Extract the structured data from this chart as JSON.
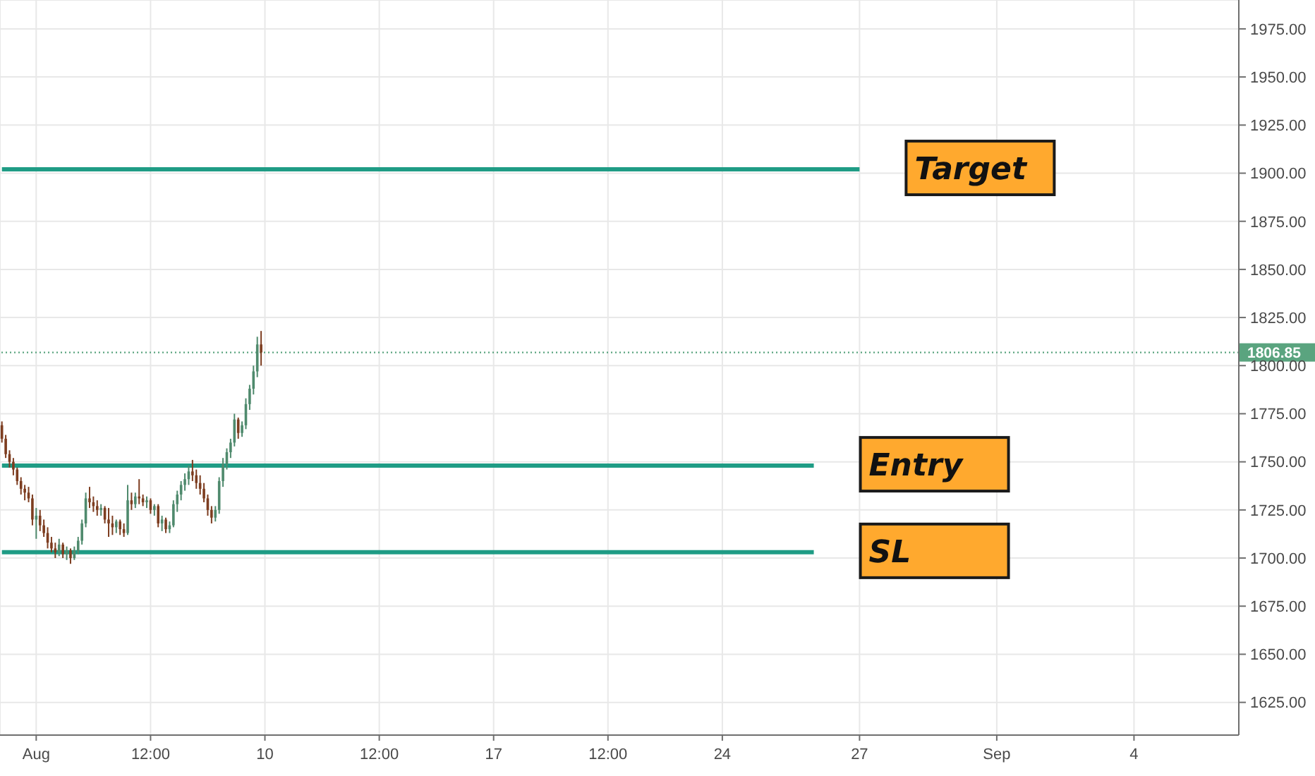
{
  "chart_data": {
    "type": "candlestick",
    "categories": [
      null,
      null,
      null,
      null,
      null,
      null,
      null,
      null,
      null,
      "Aug",
      null,
      null,
      null,
      null,
      null,
      null,
      null,
      null,
      null,
      null,
      null,
      null,
      null,
      null,
      null,
      null,
      null,
      null,
      null,
      null,
      null,
      null,
      null,
      null,
      null,
      null,
      null,
      null,
      null,
      "12:00",
      null,
      null,
      null,
      null,
      null,
      null,
      null,
      null,
      null,
      null,
      null,
      null,
      null,
      null,
      null,
      null,
      null,
      null,
      null,
      null,
      null,
      null,
      null,
      null,
      null,
      null,
      null,
      null,
      null,
      "10",
      null,
      null,
      null,
      null,
      null,
      null,
      null,
      null,
      null,
      null,
      null,
      null,
      null,
      null,
      null,
      null,
      null,
      null,
      null,
      null,
      null,
      null,
      null,
      null,
      null,
      null,
      null,
      null,
      null,
      "12:00",
      null,
      null,
      null,
      null,
      null,
      null,
      null,
      null,
      null,
      null,
      null,
      null,
      null,
      null,
      null,
      null,
      null,
      null,
      null,
      null,
      null,
      null,
      null,
      null,
      null,
      null,
      null,
      null,
      null,
      "17",
      null,
      null,
      null,
      null,
      null,
      null,
      null,
      null,
      null,
      null,
      null,
      null,
      null,
      null,
      null,
      null,
      null,
      null,
      null,
      null,
      null,
      null,
      null,
      null,
      null,
      null,
      null,
      null,
      null,
      "12:00",
      null,
      null,
      null,
      null,
      null,
      null,
      null,
      null,
      null,
      null,
      null,
      null,
      null,
      null,
      null,
      null,
      null,
      null,
      null,
      null,
      null,
      null,
      null,
      null,
      null,
      null,
      null,
      null,
      null,
      "24",
      null,
      null,
      null,
      null,
      null,
      null,
      null,
      null,
      null,
      null,
      null,
      null,
      null,
      null,
      null,
      null,
      null,
      null,
      null,
      null,
      null,
      null,
      null,
      null,
      null,
      null,
      null,
      null,
      null,
      null,
      null,
      null,
      null,
      null,
      null,
      "27",
      null,
      null,
      null,
      null,
      null,
      null,
      null,
      null,
      null,
      null,
      null,
      null,
      null,
      null,
      null,
      null,
      null,
      null,
      null,
      null,
      null,
      null,
      null,
      null,
      null,
      null,
      null,
      null,
      null,
      null,
      null,
      null,
      null,
      null,
      null,
      "Sep",
      null,
      null,
      null,
      null,
      null,
      null,
      null,
      null,
      null,
      null,
      null,
      null,
      null,
      null,
      null,
      null,
      null,
      null,
      null,
      null,
      null,
      null,
      null,
      null,
      null,
      null,
      null,
      null,
      null,
      null,
      null,
      null,
      null,
      null,
      null,
      "4",
      null,
      null,
      null,
      null,
      null,
      null,
      null,
      null,
      null,
      null,
      null,
      null,
      null,
      null,
      null,
      null,
      null,
      null,
      null,
      null,
      null,
      null,
      null,
      null,
      null,
      null,
      null
    ],
    "ohlc": [
      [
        1769,
        1771,
        1760,
        1762
      ],
      [
        1762,
        1764,
        1752,
        1754
      ],
      [
        1754,
        1756,
        1747,
        1750
      ],
      [
        1750,
        1752,
        1743,
        1746
      ],
      [
        1746,
        1747,
        1738,
        1740
      ],
      [
        1740,
        1742,
        1733,
        1736
      ],
      [
        1736,
        1738,
        1730,
        1734
      ],
      [
        1734,
        1737,
        1729,
        1731
      ],
      [
        1731,
        1733,
        1717,
        1720
      ],
      [
        1720,
        1726,
        1710,
        1722
      ],
      [
        1722,
        1725,
        1714,
        1717
      ],
      [
        1717,
        1720,
        1711,
        1713
      ],
      [
        1713,
        1716,
        1705,
        1708
      ],
      [
        1708,
        1711,
        1703,
        1705
      ],
      [
        1705,
        1708,
        1700,
        1703
      ],
      [
        1703,
        1710,
        1701,
        1707
      ],
      [
        1707,
        1708,
        1700,
        1702
      ],
      [
        1702,
        1706,
        1699,
        1704
      ],
      [
        1704,
        1705,
        1697,
        1700
      ],
      [
        1700,
        1706,
        1699,
        1704
      ],
      [
        1704,
        1711,
        1702,
        1709
      ],
      [
        1709,
        1720,
        1707,
        1718
      ],
      [
        1718,
        1734,
        1716,
        1731
      ],
      [
        1731,
        1737,
        1726,
        1729
      ],
      [
        1729,
        1732,
        1724,
        1727
      ],
      [
        1727,
        1730,
        1722,
        1725
      ],
      [
        1725,
        1728,
        1722,
        1726
      ],
      [
        1726,
        1727,
        1718,
        1720
      ],
      [
        1720,
        1726,
        1711,
        1718
      ],
      [
        1718,
        1722,
        1712,
        1716
      ],
      [
        1716,
        1720,
        1713,
        1719
      ],
      [
        1719,
        1720,
        1712,
        1715
      ],
      [
        1715,
        1718,
        1711,
        1713
      ],
      [
        1713,
        1738,
        1712,
        1730
      ],
      [
        1730,
        1734,
        1725,
        1728
      ],
      [
        1728,
        1734,
        1726,
        1732
      ],
      [
        1732,
        1741,
        1728,
        1731
      ],
      [
        1731,
        1733,
        1727,
        1729
      ],
      [
        1729,
        1732,
        1726,
        1730
      ],
      [
        1730,
        1731,
        1723,
        1725
      ],
      [
        1725,
        1728,
        1722,
        1727
      ],
      [
        1727,
        1728,
        1716,
        1718
      ],
      [
        1718,
        1722,
        1714,
        1720
      ],
      [
        1720,
        1721,
        1713,
        1715
      ],
      [
        1715,
        1719,
        1713,
        1717
      ],
      [
        1717,
        1730,
        1716,
        1728
      ],
      [
        1728,
        1735,
        1724,
        1733
      ],
      [
        1733,
        1740,
        1730,
        1738
      ],
      [
        1738,
        1744,
        1735,
        1741
      ],
      [
        1741,
        1748,
        1738,
        1745
      ],
      [
        1745,
        1751,
        1740,
        1743
      ],
      [
        1743,
        1746,
        1736,
        1739
      ],
      [
        1739,
        1743,
        1733,
        1736
      ],
      [
        1736,
        1739,
        1729,
        1731
      ],
      [
        1731,
        1733,
        1722,
        1725
      ],
      [
        1725,
        1727,
        1718,
        1721
      ],
      [
        1721,
        1727,
        1719,
        1725
      ],
      [
        1725,
        1742,
        1723,
        1740
      ],
      [
        1740,
        1752,
        1737,
        1749
      ],
      [
        1749,
        1757,
        1746,
        1755
      ],
      [
        1755,
        1762,
        1752,
        1760
      ],
      [
        1760,
        1775,
        1758,
        1772
      ],
      [
        1772,
        1773,
        1762,
        1765
      ],
      [
        1765,
        1771,
        1763,
        1769
      ],
      [
        1769,
        1783,
        1767,
        1780
      ],
      [
        1780,
        1790,
        1777,
        1788
      ],
      [
        1788,
        1800,
        1785,
        1797
      ],
      [
        1797,
        1815,
        1794,
        1811
      ],
      [
        1811,
        1818,
        1800,
        1806.85
      ],
      null,
      null,
      null,
      null,
      null,
      null,
      null,
      null,
      null,
      null,
      null,
      null,
      null,
      null,
      null,
      null,
      null,
      null,
      null,
      null,
      null,
      null,
      null,
      null,
      null,
      null,
      null,
      null,
      null,
      null,
      null,
      null,
      null,
      null,
      null,
      null,
      null,
      null,
      null,
      null,
      null,
      null,
      null,
      null,
      null,
      null,
      null,
      null,
      null,
      null,
      null,
      null,
      null,
      null,
      null,
      null,
      null,
      null,
      null,
      null,
      null,
      null,
      null,
      null,
      null,
      null,
      null,
      null,
      null,
      null,
      null,
      null,
      null,
      null,
      null,
      null,
      null,
      null,
      null,
      null,
      null,
      null,
      null,
      null,
      null,
      null,
      null,
      null,
      null,
      null,
      null,
      null,
      null,
      null,
      null,
      null,
      null,
      null,
      null,
      null,
      null,
      null,
      null,
      null,
      null,
      null,
      null,
      null,
      null,
      null,
      null,
      null,
      null,
      null,
      null,
      null,
      null,
      null,
      null,
      null,
      null,
      null,
      null,
      null,
      null,
      null,
      null,
      null,
      null,
      null,
      null,
      null,
      null,
      null,
      null,
      null,
      null,
      null,
      null,
      null,
      null,
      null,
      null,
      null,
      null,
      null,
      null,
      null,
      null,
      null,
      null,
      null,
      null,
      null,
      null,
      null,
      null,
      null,
      null,
      null,
      null,
      null,
      null,
      null,
      null,
      null,
      null,
      null,
      null,
      null,
      null,
      null,
      null,
      null,
      null,
      null,
      null,
      null,
      null,
      null,
      null,
      null,
      null,
      null,
      null,
      null,
      null,
      null,
      null,
      null,
      null,
      null,
      null,
      null,
      null,
      null,
      null,
      null,
      null,
      null,
      null,
      null,
      null,
      null,
      null,
      null,
      null,
      null,
      null,
      null,
      null,
      null,
      null,
      null,
      null,
      null,
      null,
      null,
      null,
      null,
      null,
      null,
      null,
      null,
      null,
      null,
      null,
      null,
      null,
      null,
      null,
      null,
      null,
      null,
      null,
      null,
      null,
      null,
      null,
      null,
      null,
      null,
      null,
      null,
      null,
      null,
      null,
      null,
      null,
      null,
      null,
      null,
      null,
      null,
      null,
      null
    ],
    "colors": [
      "#7d3d20",
      "#7d3d20",
      "#7d3d20",
      "#7d3d20",
      "#7d3d20",
      "#7d3d20",
      "#7d3d20",
      "#7d3d20",
      "#7d3d20",
      "#4f8a6d",
      "#7d3d20",
      "#7d3d20",
      "#7d3d20",
      "#7d3d20",
      "#7d3d20",
      "#4f8a6d",
      "#7d3d20",
      "#4f8a6d",
      "#7d3d20",
      "#4f8a6d",
      "#4f8a6d",
      "#4f8a6d",
      "#4f8a6d",
      "#7d3d20",
      "#7d3d20",
      "#7d3d20",
      "#4f8a6d",
      "#7d3d20",
      "#7d3d20",
      "#7d3d20",
      "#4f8a6d",
      "#7d3d20",
      "#7d3d20",
      "#4f8a6d",
      "#7d3d20",
      "#4f8a6d",
      "#7d3d20",
      "#7d3d20",
      "#4f8a6d",
      "#7d3d20",
      "#4f8a6d",
      "#7d3d20",
      "#4f8a6d",
      "#7d3d20",
      "#4f8a6d",
      "#4f8a6d",
      "#4f8a6d",
      "#4f8a6d",
      "#4f8a6d",
      "#4f8a6d",
      "#7d3d20",
      "#7d3d20",
      "#7d3d20",
      "#7d3d20",
      "#7d3d20",
      "#7d3d20",
      "#4f8a6d",
      "#4f8a6d",
      "#4f8a6d",
      "#4f8a6d",
      "#4f8a6d",
      "#4f8a6d",
      "#7d3d20",
      "#4f8a6d",
      "#4f8a6d",
      "#4f8a6d",
      "#4f8a6d",
      "#4f8a6d",
      "#7d3d20",
      null,
      null,
      null,
      null,
      null,
      null,
      null,
      null,
      null,
      null,
      null,
      null,
      null,
      null,
      null,
      null,
      null,
      null,
      null,
      null,
      null,
      null,
      null,
      null,
      null,
      null,
      null,
      null,
      null,
      null,
      null,
      null,
      null,
      null,
      null,
      null,
      null,
      null,
      null,
      null,
      null,
      null,
      null,
      null,
      null,
      null,
      null,
      null,
      null,
      null,
      null,
      null,
      null,
      null,
      null,
      null,
      null,
      null,
      null,
      null,
      null,
      null,
      null,
      null,
      null,
      null,
      null,
      null,
      null,
      null,
      null,
      null,
      null,
      null,
      null,
      null,
      null,
      null,
      null,
      null,
      null,
      null,
      null,
      null,
      null,
      null,
      null,
      null,
      null,
      null,
      null,
      null,
      null,
      null,
      null,
      null,
      null,
      null,
      null,
      null,
      null,
      null,
      null,
      null,
      null,
      null,
      null,
      null,
      null,
      null,
      null,
      null,
      null,
      null,
      null,
      null,
      null,
      null,
      null,
      null,
      null,
      null,
      null,
      null,
      null,
      null,
      null,
      null,
      null,
      null,
      null,
      null,
      null,
      null,
      null,
      null,
      null,
      null,
      null,
      null,
      null,
      null,
      null,
      null,
      null,
      null,
      null,
      null,
      null,
      null,
      null,
      null,
      null,
      null,
      null,
      null,
      null,
      null,
      null,
      null,
      null,
      null,
      null,
      null,
      null,
      null,
      null,
      null,
      null,
      null,
      null,
      null,
      null,
      null,
      null,
      null,
      null,
      null,
      null,
      null,
      null,
      null,
      null,
      null,
      null,
      null,
      null,
      null,
      null,
      null,
      null,
      null,
      null,
      null,
      null,
      null,
      null,
      null,
      null,
      null,
      null,
      null,
      null,
      null,
      null,
      null,
      null,
      null,
      null,
      null,
      null,
      null,
      null,
      null,
      null,
      null,
      null,
      null,
      null,
      null,
      null,
      null,
      null,
      null,
      null,
      null,
      null,
      null,
      null,
      null,
      null,
      null,
      null,
      null,
      null,
      null,
      null,
      null,
      null,
      null,
      null,
      null,
      null,
      null,
      null,
      null,
      null,
      null,
      null,
      null,
      null,
      null,
      null,
      null,
      null,
      null
    ],
    "series": [
      {
        "name": "Target",
        "type": "line",
        "color": "#1f9c85",
        "values": [
          1902,
          1902,
          1902,
          1902,
          1902,
          1902,
          1902,
          1902,
          1902,
          1902,
          1902,
          1902,
          1902,
          1902,
          1902,
          1902,
          1902,
          1902,
          1902,
          1902,
          1902,
          1902,
          1902,
          1902,
          1902,
          1902,
          1902,
          1902,
          1902,
          1902,
          1902,
          1902,
          1902,
          1902,
          1902,
          1902,
          1902,
          1902,
          1902,
          1902,
          1902,
          1902,
          1902,
          1902,
          1902,
          1902,
          1902,
          1902,
          1902,
          1902,
          1902,
          1902,
          1902,
          1902,
          1902,
          1902,
          1902,
          1902,
          1902,
          1902,
          1902,
          1902,
          1902,
          1902,
          1902,
          1902,
          1902,
          1902,
          1902,
          1902,
          1902,
          1902,
          1902,
          1902,
          1902,
          1902,
          1902,
          1902,
          1902,
          1902,
          1902,
          1902,
          1902,
          1902,
          1902,
          1902,
          1902,
          1902,
          1902,
          1902,
          1902,
          1902,
          1902,
          1902,
          1902,
          1902,
          1902,
          1902,
          1902,
          1902,
          1902,
          1902,
          1902,
          1902,
          1902,
          1902,
          1902,
          1902,
          1902,
          1902,
          1902,
          1902,
          1902,
          1902,
          1902,
          1902,
          1902,
          1902,
          1902,
          1902,
          1902,
          1902,
          1902,
          1902,
          1902,
          1902,
          1902,
          1902,
          1902,
          1902,
          1902,
          1902,
          1902,
          1902,
          1902,
          1902,
          1902,
          1902,
          1902,
          1902,
          1902,
          1902,
          1902,
          1902,
          1902,
          1902,
          1902,
          1902,
          1902,
          1902,
          1902,
          1902,
          1902,
          1902,
          1902,
          1902,
          1902,
          1902,
          1902,
          1902,
          1902,
          1902,
          1902,
          1902,
          1902,
          1902,
          1902,
          1902,
          1902,
          1902,
          1902,
          1902,
          1902,
          1902,
          1902,
          1902,
          1902,
          1902,
          1902,
          1902,
          1902,
          1902,
          1902,
          1902,
          1902,
          1902,
          1902,
          1902,
          1902,
          1902,
          1902,
          1902,
          1902,
          1902,
          1902,
          1902,
          1902,
          1902,
          1902,
          1902,
          1902,
          1902,
          1902,
          1902,
          1902,
          1902,
          1902,
          1902,
          1902,
          1902,
          1902,
          1902,
          1902,
          1902,
          1902,
          1902,
          1902,
          1902,
          1902,
          1902,
          1902,
          1902,
          1902,
          1902,
          1902,
          1902,
          null,
          null,
          null,
          null,
          null,
          null,
          null,
          null,
          null,
          null,
          null,
          null,
          null,
          null,
          null,
          null,
          null,
          null,
          null,
          null,
          null,
          null,
          null,
          null,
          null,
          null,
          null,
          null,
          null,
          null,
          null,
          null,
          null,
          null,
          null,
          null,
          null,
          null,
          null,
          null,
          null,
          null,
          null,
          null,
          null,
          null,
          null,
          null,
          null,
          null,
          null,
          null,
          null,
          null,
          null,
          null,
          null,
          null,
          null,
          null,
          null,
          null,
          null,
          null,
          null,
          null,
          null,
          null,
          null,
          null,
          null,
          null,
          null,
          null,
          null,
          null,
          null,
          null,
          null,
          null,
          null,
          null,
          null,
          null,
          null,
          null,
          null,
          null,
          null,
          null,
          null,
          null,
          null,
          null,
          null,
          null,
          null,
          null,
          null
        ]
      },
      {
        "name": "Entry",
        "type": "line",
        "color": "#1f9c85",
        "values": [
          1748,
          1748,
          1748,
          1748,
          1748,
          1748,
          1748,
          1748,
          1748,
          1748,
          1748,
          1748,
          1748,
          1748,
          1748,
          1748,
          1748,
          1748,
          1748,
          1748,
          1748,
          1748,
          1748,
          1748,
          1748,
          1748,
          1748,
          1748,
          1748,
          1748,
          1748,
          1748,
          1748,
          1748,
          1748,
          1748,
          1748,
          1748,
          1748,
          1748,
          1748,
          1748,
          1748,
          1748,
          1748,
          1748,
          1748,
          1748,
          1748,
          1748,
          1748,
          1748,
          1748,
          1748,
          1748,
          1748,
          1748,
          1748,
          1748,
          1748,
          1748,
          1748,
          1748,
          1748,
          1748,
          1748,
          1748,
          1748,
          1748,
          1748,
          1748,
          1748,
          1748,
          1748,
          1748,
          1748,
          1748,
          1748,
          1748,
          1748,
          1748,
          1748,
          1748,
          1748,
          1748,
          1748,
          1748,
          1748,
          1748,
          1748,
          1748,
          1748,
          1748,
          1748,
          1748,
          1748,
          1748,
          1748,
          1748,
          1748,
          1748,
          1748,
          1748,
          1748,
          1748,
          1748,
          1748,
          1748,
          1748,
          1748,
          1748,
          1748,
          1748,
          1748,
          1748,
          1748,
          1748,
          1748,
          1748,
          1748,
          1748,
          1748,
          1748,
          1748,
          1748,
          1748,
          1748,
          1748,
          1748,
          1748,
          1748,
          1748,
          1748,
          1748,
          1748,
          1748,
          1748,
          1748,
          1748,
          1748,
          1748,
          1748,
          1748,
          1748,
          1748,
          1748,
          1748,
          1748,
          1748,
          1748,
          1748,
          1748,
          1748,
          1748,
          1748,
          1748,
          1748,
          1748,
          1748,
          1748,
          1748,
          1748,
          1748,
          1748,
          1748,
          1748,
          1748,
          1748,
          1748,
          1748,
          1748,
          1748,
          1748,
          1748,
          1748,
          1748,
          1748,
          1748,
          1748,
          1748,
          1748,
          1748,
          1748,
          1748,
          1748,
          1748,
          1748,
          1748,
          1748,
          1748,
          1748,
          1748,
          1748,
          1748,
          1748,
          1748,
          1748,
          1748,
          1748,
          1748,
          1748,
          1748,
          1748,
          1748,
          1748,
          1748,
          1748,
          1748,
          1748,
          1748,
          1748,
          1748,
          1748,
          1748,
          null,
          null,
          null,
          null,
          null,
          null,
          null,
          null,
          null,
          null,
          null,
          null,
          null,
          null,
          null,
          null,
          null,
          null,
          null,
          null,
          null,
          null,
          null,
          null,
          null,
          null,
          null,
          null,
          null,
          null,
          null,
          null,
          null,
          null,
          null,
          null,
          null,
          null,
          null,
          null,
          null,
          null,
          null,
          null,
          null,
          null,
          null,
          null,
          null,
          null,
          null,
          null,
          null,
          null,
          null,
          null,
          null,
          null,
          null,
          null,
          null,
          null,
          null,
          null,
          null,
          null,
          null,
          null,
          null,
          null,
          null,
          null,
          null,
          null,
          null,
          null,
          null,
          null,
          null,
          null,
          null,
          null,
          null,
          null,
          null,
          null,
          null,
          null,
          null,
          null,
          null,
          null,
          null,
          null,
          null,
          null,
          null,
          null,
          null,
          null,
          null,
          null,
          null,
          null,
          null,
          null,
          null,
          null,
          null,
          null,
          null
        ]
      },
      {
        "name": "SL",
        "type": "line",
        "color": "#1f9c85",
        "values": [
          1703,
          1703,
          1703,
          1703,
          1703,
          1703,
          1703,
          1703,
          1703,
          1703,
          1703,
          1703,
          1703,
          1703,
          1703,
          1703,
          1703,
          1703,
          1703,
          1703,
          1703,
          1703,
          1703,
          1703,
          1703,
          1703,
          1703,
          1703,
          1703,
          1703,
          1703,
          1703,
          1703,
          1703,
          1703,
          1703,
          1703,
          1703,
          1703,
          1703,
          1703,
          1703,
          1703,
          1703,
          1703,
          1703,
          1703,
          1703,
          1703,
          1703,
          1703,
          1703,
          1703,
          1703,
          1703,
          1703,
          1703,
          1703,
          1703,
          1703,
          1703,
          1703,
          1703,
          1703,
          1703,
          1703,
          1703,
          1703,
          1703,
          1703,
          1703,
          1703,
          1703,
          1703,
          1703,
          1703,
          1703,
          1703,
          1703,
          1703,
          1703,
          1703,
          1703,
          1703,
          1703,
          1703,
          1703,
          1703,
          1703,
          1703,
          1703,
          1703,
          1703,
          1703,
          1703,
          1703,
          1703,
          1703,
          1703,
          1703,
          1703,
          1703,
          1703,
          1703,
          1703,
          1703,
          1703,
          1703,
          1703,
          1703,
          1703,
          1703,
          1703,
          1703,
          1703,
          1703,
          1703,
          1703,
          1703,
          1703,
          1703,
          1703,
          1703,
          1703,
          1703,
          1703,
          1703,
          1703,
          1703,
          1703,
          1703,
          1703,
          1703,
          1703,
          1703,
          1703,
          1703,
          1703,
          1703,
          1703,
          1703,
          1703,
          1703,
          1703,
          1703,
          1703,
          1703,
          1703,
          1703,
          1703,
          1703,
          1703,
          1703,
          1703,
          1703,
          1703,
          1703,
          1703,
          1703,
          1703,
          1703,
          1703,
          1703,
          1703,
          1703,
          1703,
          1703,
          1703,
          1703,
          1703,
          1703,
          1703,
          1703,
          1703,
          1703,
          1703,
          1703,
          1703,
          1703,
          1703,
          1703,
          1703,
          1703,
          1703,
          1703,
          1703,
          1703,
          1703,
          1703,
          1703,
          1703,
          1703,
          1703,
          1703,
          1703,
          1703,
          1703,
          1703,
          1703,
          1703,
          1703,
          1703,
          1703,
          1703,
          1703,
          1703,
          1703,
          1703,
          1703,
          1703,
          1703,
          1703,
          1703,
          1703,
          null,
          null,
          null,
          null,
          null,
          null,
          null,
          null,
          null,
          null,
          null,
          null,
          null,
          null,
          null,
          null,
          null,
          null,
          null,
          null,
          null,
          null,
          null,
          null,
          null,
          null,
          null,
          null,
          null,
          null,
          null,
          null,
          null,
          null,
          null,
          null,
          null,
          null,
          null,
          null,
          null,
          null,
          null,
          null,
          null,
          null,
          null,
          null,
          null,
          null,
          null,
          null,
          null,
          null,
          null,
          null,
          null,
          null,
          null,
          null,
          null,
          null,
          null,
          null,
          null,
          null,
          null,
          null,
          null,
          null,
          null,
          null,
          null,
          null,
          null,
          null,
          null,
          null,
          null,
          null,
          null,
          null,
          null,
          null,
          null,
          null,
          null,
          null,
          null,
          null,
          null,
          null,
          null,
          null,
          null,
          null,
          null,
          null,
          null,
          null,
          null,
          null,
          null,
          null,
          null,
          null,
          null,
          null,
          null,
          null,
          null
        ]
      }
    ],
    "ylim": [
      1608,
      1990
    ],
    "yticks": [
      {
        "value": 1625,
        "label": "1625.00"
      },
      {
        "value": 1650,
        "label": "1650.00"
      },
      {
        "value": 1675,
        "label": "1675.00"
      },
      {
        "value": 1700,
        "label": "1700.00"
      },
      {
        "value": 1725,
        "label": "1725.00"
      },
      {
        "value": 1750,
        "label": "1750.00"
      },
      {
        "value": 1775,
        "label": "1775.00"
      },
      {
        "value": 1800,
        "label": "1800.00"
      },
      {
        "value": 1825,
        "label": "1825.00"
      },
      {
        "value": 1850,
        "label": "1850.00"
      },
      {
        "value": 1875,
        "label": "1875.00"
      },
      {
        "value": 1900,
        "label": "1900.00"
      },
      {
        "value": 1925,
        "label": "1925.00"
      },
      {
        "value": 1950,
        "label": "1950.00"
      },
      {
        "value": 1975,
        "label": "1975.00"
      }
    ],
    "grid": true,
    "ref_lines": [
      {
        "axis": "y",
        "value": 1806.85,
        "label": "1806.85",
        "color": "#5aa47f",
        "line_style": "dotted"
      }
    ]
  }
}
